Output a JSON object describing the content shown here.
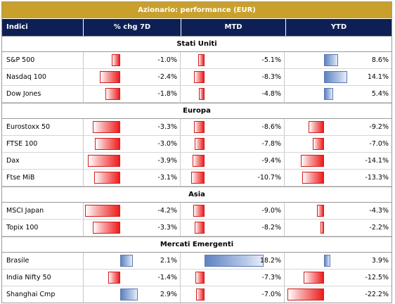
{
  "title": "Azionario: performance (EUR)",
  "columns": [
    "Indici",
    "% chg 7D",
    "MTD",
    "YTD"
  ],
  "colors": {
    "title_bg": "#c9a02c",
    "header_bg": "#0d1f55",
    "negative": "#ee1c1c",
    "positive": "#5f82c2"
  },
  "groups": [
    {
      "label": "Stati Uniti",
      "rows": [
        {
          "name": "S&P 500",
          "chg7d": "-1.0%",
          "mtd": "-5.1%",
          "ytd": "8.6%",
          "v": [
            -1.0,
            -5.1,
            8.6
          ]
        },
        {
          "name": "Nasdaq 100",
          "chg7d": "-2.4%",
          "mtd": "-8.3%",
          "ytd": "14.1%",
          "v": [
            -2.4,
            -8.3,
            14.1
          ]
        },
        {
          "name": "Dow Jones",
          "chg7d": "-1.8%",
          "mtd": "-4.8%",
          "ytd": "5.4%",
          "v": [
            -1.8,
            -4.8,
            5.4
          ]
        }
      ]
    },
    {
      "label": "Europa",
      "rows": [
        {
          "name": "Eurostoxx 50",
          "chg7d": "-3.3%",
          "mtd": "-8.6%",
          "ytd": "-9.2%",
          "v": [
            -3.3,
            -8.6,
            -9.2
          ]
        },
        {
          "name": "FTSE 100",
          "chg7d": "-3.0%",
          "mtd": "-7.8%",
          "ytd": "-7.0%",
          "v": [
            -3.0,
            -7.8,
            -7.0
          ]
        },
        {
          "name": "Dax",
          "chg7d": "-3.9%",
          "mtd": "-9.4%",
          "ytd": "-14.1%",
          "v": [
            -3.9,
            -9.4,
            -14.1
          ]
        },
        {
          "name": "Ftse MiB",
          "chg7d": "-3.1%",
          "mtd": "-10.7%",
          "ytd": "-13.3%",
          "v": [
            -3.1,
            -10.7,
            -13.3
          ]
        }
      ]
    },
    {
      "label": "Asia",
      "rows": [
        {
          "name": "MSCI Japan",
          "chg7d": "-4.2%",
          "mtd": "-9.0%",
          "ytd": "-4.3%",
          "v": [
            -4.2,
            -9.0,
            -4.3
          ]
        },
        {
          "name": "Topix 100",
          "chg7d": "-3.3%",
          "mtd": "-8.2%",
          "ytd": "-2.2%",
          "v": [
            -3.3,
            -8.2,
            -2.2
          ]
        }
      ]
    },
    {
      "label": "Mercati Emergenti",
      "rows": [
        {
          "name": "Brasile",
          "chg7d": "2.1%",
          "mtd": "18.2%",
          "ytd": "3.9%",
          "v": [
            2.1,
            18.2,
            3.9
          ]
        },
        {
          "name": "India Nifty 50",
          "chg7d": "-1.4%",
          "mtd": "-7.3%",
          "ytd": "-12.5%",
          "v": [
            -1.4,
            -7.3,
            -12.5
          ]
        },
        {
          "name": "Shanghai Cmp",
          "chg7d": "2.9%",
          "mtd": "-7.0%",
          "ytd": "-22.2%",
          "v": [
            2.9,
            -7.0,
            -22.2
          ]
        }
      ]
    }
  ]
}
